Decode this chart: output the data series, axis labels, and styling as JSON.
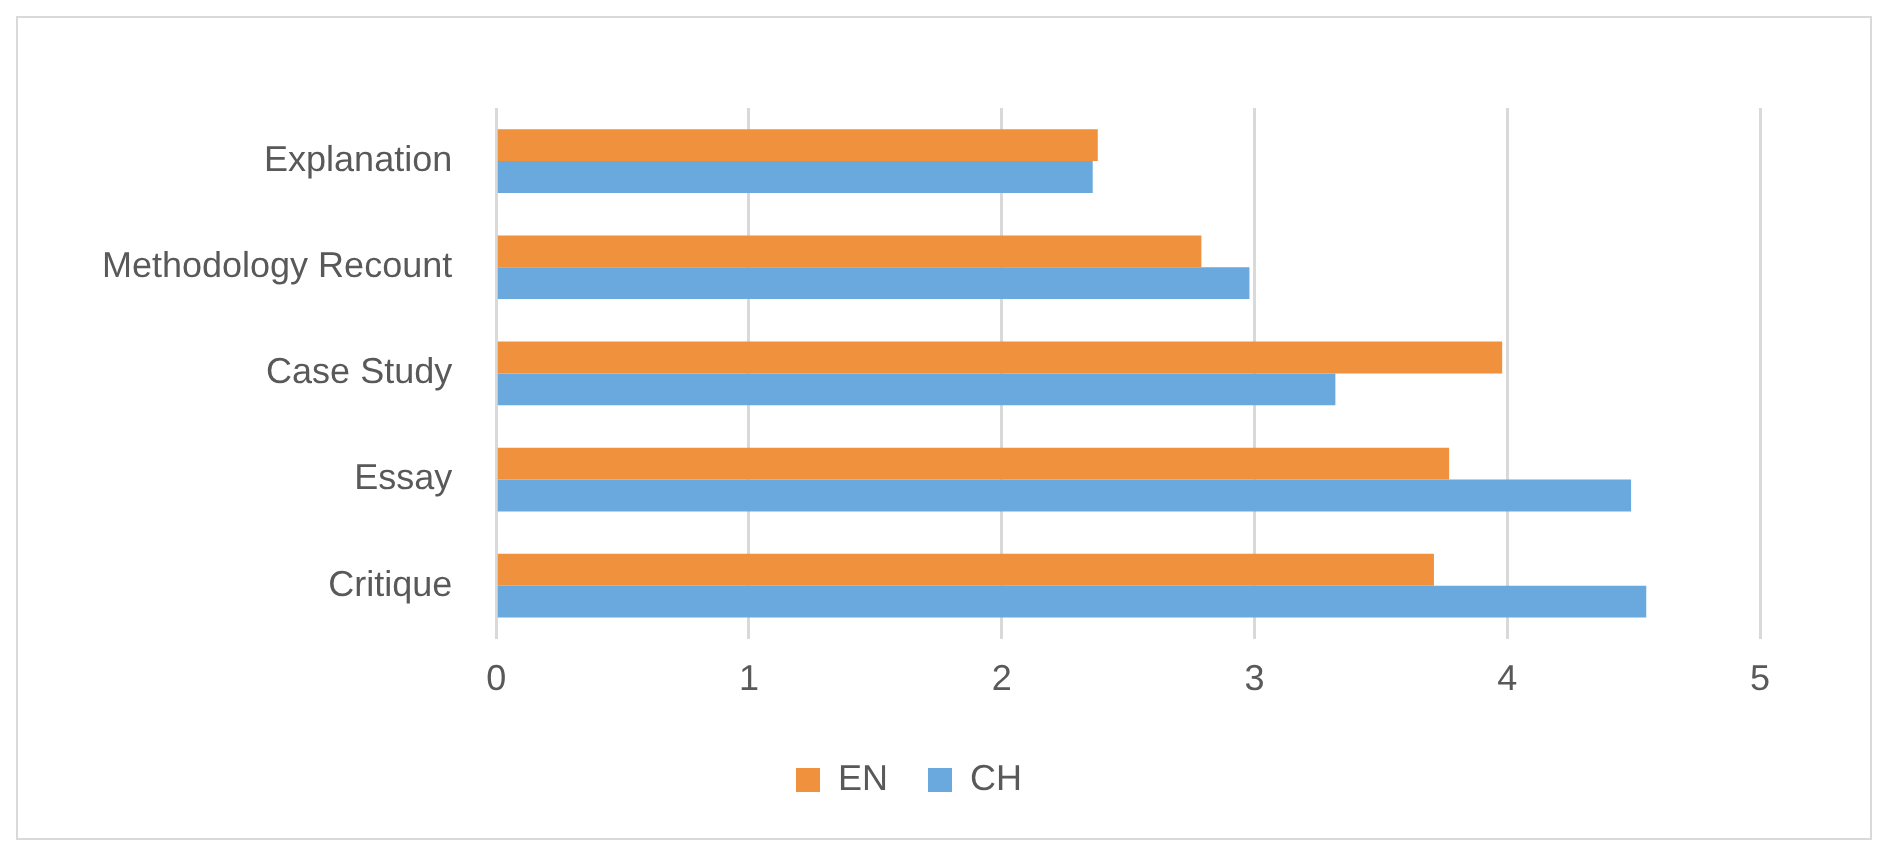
{
  "chart_data": {
    "type": "bar",
    "orientation": "horizontal",
    "categories": [
      "Explanation",
      "Methodology Recount",
      "Case Study",
      "Essay",
      "Critique"
    ],
    "series": [
      {
        "name": "EN",
        "color": "#f0913e",
        "values": [
          2.38,
          2.79,
          3.98,
          3.77,
          3.71
        ]
      },
      {
        "name": "CH",
        "color": "#6aa9dd",
        "values": [
          2.36,
          2.98,
          3.32,
          4.49,
          4.55
        ]
      }
    ],
    "xlim": [
      0,
      5
    ],
    "xticks": [
      0,
      1,
      2,
      3,
      4,
      5
    ],
    "grid": "x",
    "legend": "bottom"
  }
}
